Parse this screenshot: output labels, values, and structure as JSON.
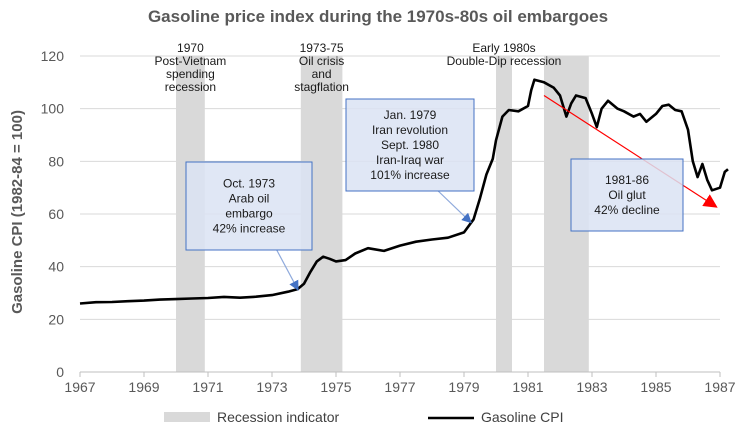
{
  "chart_data": {
    "type": "line",
    "title": "Gasoline price index during the 1970s-80s oil embargoes",
    "xlabel": "",
    "ylabel": "Gasoline CPI (1982-84 = 100)",
    "xlim": [
      1967,
      1987
    ],
    "ylim": [
      0,
      120
    ],
    "x_ticks": [
      "1967",
      "1969",
      "1971",
      "1973",
      "1975",
      "1977",
      "1979",
      "1981",
      "1983",
      "1985",
      "1987"
    ],
    "y_ticks": [
      "0",
      "20",
      "40",
      "60",
      "80",
      "100",
      "120"
    ],
    "recessions": [
      {
        "start": 1970.0,
        "end": 1970.9,
        "label": [
          "1970",
          "Post-Vietnam",
          "spending",
          "recession"
        ]
      },
      {
        "start": 1973.9,
        "end": 1975.2,
        "label": [
          "1973-75",
          "Oil crisis",
          "and",
          "stagflation"
        ]
      },
      {
        "start": 1980.0,
        "end": 1980.5,
        "label": [
          "Early 1980s",
          "Double-Dip recession"
        ]
      },
      {
        "start": 1981.5,
        "end": 1982.9,
        "label": []
      }
    ],
    "series": [
      {
        "name": "Gasoline CPI",
        "color": "#000000",
        "points": [
          [
            1967.0,
            26.0
          ],
          [
            1967.5,
            26.5
          ],
          [
            1968.0,
            26.6
          ],
          [
            1968.5,
            26.9
          ],
          [
            1969.0,
            27.1
          ],
          [
            1969.5,
            27.5
          ],
          [
            1970.0,
            27.7
          ],
          [
            1970.5,
            27.9
          ],
          [
            1971.0,
            28.1
          ],
          [
            1971.5,
            28.5
          ],
          [
            1972.0,
            28.2
          ],
          [
            1972.5,
            28.6
          ],
          [
            1973.0,
            29.2
          ],
          [
            1973.5,
            30.5
          ],
          [
            1973.8,
            31.5
          ],
          [
            1974.0,
            33.5
          ],
          [
            1974.2,
            38.0
          ],
          [
            1974.4,
            42.0
          ],
          [
            1974.6,
            43.8
          ],
          [
            1974.8,
            43.0
          ],
          [
            1975.0,
            42.0
          ],
          [
            1975.3,
            42.5
          ],
          [
            1975.6,
            45.0
          ],
          [
            1976.0,
            47.0
          ],
          [
            1976.5,
            46.0
          ],
          [
            1977.0,
            48.0
          ],
          [
            1977.5,
            49.5
          ],
          [
            1978.0,
            50.3
          ],
          [
            1978.5,
            51.0
          ],
          [
            1979.0,
            53.0
          ],
          [
            1979.3,
            58.0
          ],
          [
            1979.5,
            66.0
          ],
          [
            1979.7,
            75.0
          ],
          [
            1979.9,
            81.0
          ],
          [
            1980.0,
            88.0
          ],
          [
            1980.2,
            97.0
          ],
          [
            1980.4,
            99.5
          ],
          [
            1980.7,
            99.0
          ],
          [
            1981.0,
            101.0
          ],
          [
            1981.1,
            107.0
          ],
          [
            1981.2,
            111.0
          ],
          [
            1981.5,
            110.0
          ],
          [
            1981.8,
            108.0
          ],
          [
            1982.0,
            105.0
          ],
          [
            1982.2,
            97.0
          ],
          [
            1982.35,
            102.0
          ],
          [
            1982.5,
            105.0
          ],
          [
            1982.8,
            104.0
          ],
          [
            1983.0,
            98.0
          ],
          [
            1983.15,
            93.0
          ],
          [
            1983.3,
            100.0
          ],
          [
            1983.5,
            103.0
          ],
          [
            1983.8,
            100.0
          ],
          [
            1984.0,
            99.0
          ],
          [
            1984.3,
            97.0
          ],
          [
            1984.5,
            98.0
          ],
          [
            1984.7,
            95.0
          ],
          [
            1985.0,
            98.0
          ],
          [
            1985.2,
            101.0
          ],
          [
            1985.4,
            101.5
          ],
          [
            1985.6,
            99.5
          ],
          [
            1985.8,
            99.0
          ],
          [
            1986.0,
            92.0
          ],
          [
            1986.15,
            80.0
          ],
          [
            1986.3,
            74.0
          ],
          [
            1986.45,
            79.0
          ],
          [
            1986.6,
            73.0
          ],
          [
            1986.75,
            69.0
          ],
          [
            1987.0,
            70.0
          ],
          [
            1987.15,
            76.0
          ],
          [
            1987.25,
            77.0
          ]
        ]
      }
    ],
    "annotations": [
      {
        "lines": [
          "Oct. 1973",
          "Arab oil",
          "embargo",
          "42% increase"
        ],
        "target": [
          1973.8,
          31.5
        ]
      },
      {
        "lines": [
          "Jan. 1979",
          "Iran revolution",
          "Sept. 1980",
          "Iran-Iraq war",
          "101% increase"
        ],
        "target": [
          1979.2,
          57.0
        ]
      },
      {
        "lines": [
          "1981-86",
          "Oil glut",
          "42% decline"
        ],
        "trend": [
          [
            1981.5,
            105.0
          ],
          [
            1986.85,
            63.0
          ]
        ]
      }
    ],
    "legend": {
      "position": "bottom",
      "entries": [
        {
          "label": "Recession indicator",
          "color": "#d9d9d9"
        },
        {
          "label": "Gasoline CPI",
          "color": "#000000"
        }
      ]
    }
  }
}
